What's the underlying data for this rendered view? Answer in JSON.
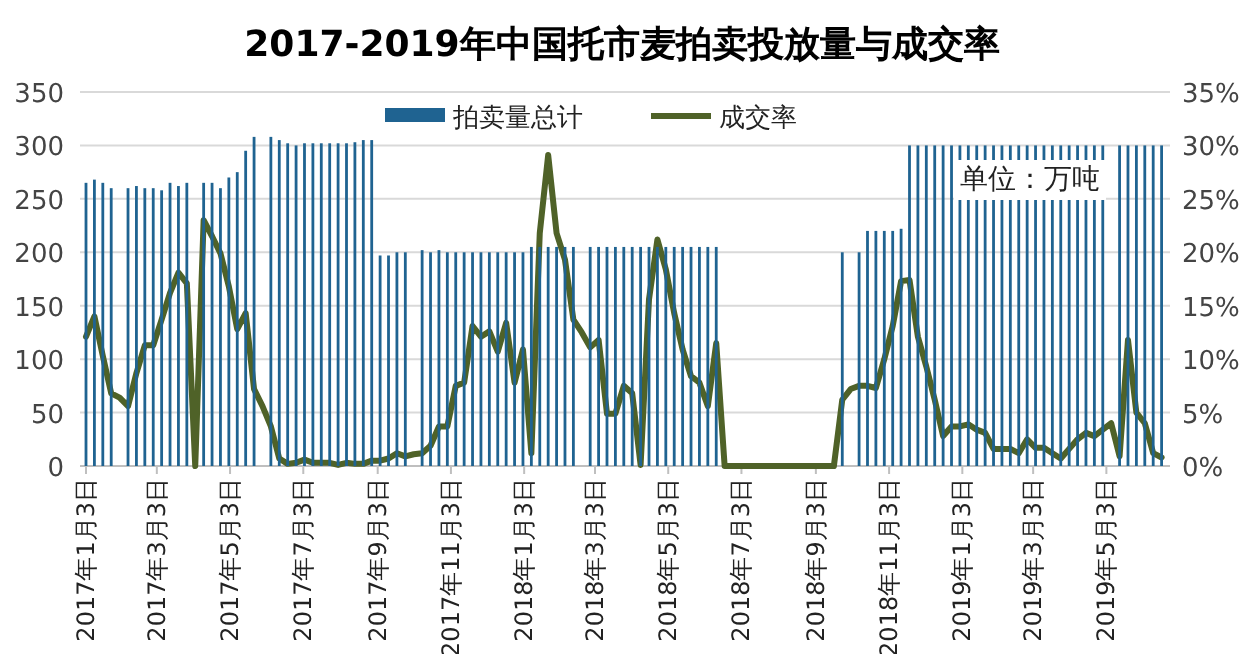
{
  "chart_data": {
    "type": "bar",
    "title": "2017-2019年中国托市麦拍卖投放量与成交率",
    "x": [
      "2017-01-03",
      "2017-01-10",
      "2017-01-17",
      "2017-01-24",
      "2017-01-31",
      "2017-02-07",
      "2017-02-14",
      "2017-02-21",
      "2017-02-28",
      "2017-03-07",
      "2017-03-14",
      "2017-03-21",
      "2017-03-28",
      "2017-04-04",
      "2017-04-11",
      "2017-04-18",
      "2017-04-25",
      "2017-05-02",
      "2017-05-09",
      "2017-05-16",
      "2017-05-23",
      "2017-05-30",
      "2017-06-06",
      "2017-06-13",
      "2017-06-20",
      "2017-06-27",
      "2017-07-04",
      "2017-07-11",
      "2017-07-18",
      "2017-07-25",
      "2017-08-01",
      "2017-08-08",
      "2017-08-15",
      "2017-08-22",
      "2017-08-29",
      "2017-09-05",
      "2017-09-12",
      "2017-09-19",
      "2017-09-26",
      "2017-10-03",
      "2017-10-10",
      "2017-10-17",
      "2017-10-24",
      "2017-10-31",
      "2017-11-07",
      "2017-11-14",
      "2017-11-21",
      "2017-11-28",
      "2017-12-05",
      "2017-12-12",
      "2017-12-19",
      "2017-12-26",
      "2018-01-02",
      "2018-01-09",
      "2018-01-16",
      "2018-01-23",
      "2018-01-30",
      "2018-02-06",
      "2018-02-13",
      "2018-02-20",
      "2018-02-27",
      "2018-03-06",
      "2018-03-13",
      "2018-03-20",
      "2018-03-27",
      "2018-04-03",
      "2018-04-10",
      "2018-04-17",
      "2018-04-24",
      "2018-05-01",
      "2018-05-08",
      "2018-05-15",
      "2018-05-22",
      "2018-05-29",
      "2018-06-05",
      "2018-06-12",
      "2018-06-19",
      "2018-06-26",
      "2018-07-03",
      "2018-07-10",
      "2018-07-17",
      "2018-07-24",
      "2018-07-31",
      "2018-08-07",
      "2018-08-14",
      "2018-08-21",
      "2018-08-28",
      "2018-09-04",
      "2018-09-11",
      "2018-09-18",
      "2018-09-25",
      "2018-10-02",
      "2018-10-09",
      "2018-10-16",
      "2018-10-23",
      "2018-10-30",
      "2018-11-06",
      "2018-11-13",
      "2018-11-20",
      "2018-11-27",
      "2018-12-04",
      "2018-12-11",
      "2018-12-18",
      "2018-12-25",
      "2019-01-01",
      "2019-01-08",
      "2019-01-15",
      "2019-01-22",
      "2019-01-29",
      "2019-02-05",
      "2019-02-12",
      "2019-02-19",
      "2019-02-26",
      "2019-03-05",
      "2019-03-12",
      "2019-03-19",
      "2019-03-26",
      "2019-04-02",
      "2019-04-09",
      "2019-04-16",
      "2019-04-23",
      "2019-04-30",
      "2019-05-07",
      "2019-05-14",
      "2019-05-21",
      "2019-05-28",
      "2019-06-04",
      "2019-06-11",
      "2019-06-18"
    ],
    "series": [
      {
        "name": "拍卖量总计",
        "color": "#1f6391",
        "values": [
          265,
          268,
          265,
          260,
          null,
          260,
          262,
          260,
          260,
          258,
          265,
          262,
          265,
          null,
          265,
          265,
          260,
          270,
          275,
          295,
          308,
          null,
          308,
          305,
          302,
          300,
          302,
          302,
          302,
          302,
          302,
          302,
          303,
          305,
          305,
          197,
          197,
          200,
          200,
          null,
          202,
          200,
          202,
          200,
          200,
          200,
          200,
          200,
          200,
          200,
          200,
          200,
          200,
          205,
          205,
          205,
          205,
          205,
          205,
          null,
          205,
          205,
          205,
          205,
          205,
          205,
          205,
          205,
          205,
          205,
          205,
          205,
          205,
          205,
          205,
          205,
          null,
          null,
          null,
          null,
          null,
          null,
          null,
          null,
          null,
          null,
          null,
          null,
          null,
          null,
          200,
          null,
          200,
          220,
          220,
          220,
          220,
          222,
          300,
          300,
          300,
          300,
          300,
          300,
          300,
          300,
          300,
          300,
          300,
          300,
          300,
          300,
          300,
          300,
          300,
          300,
          300,
          300,
          300,
          300,
          300,
          300,
          null,
          300,
          300,
          300,
          300,
          300,
          300
        ]
      },
      {
        "name": "成交率",
        "type": "line",
        "axis": "y2",
        "color": "#4f6228",
        "values": [
          12.1,
          14.0,
          10.3,
          6.8,
          6.4,
          5.6,
          8.7,
          11.3,
          11.3,
          13.7,
          16.2,
          18.1,
          17.1,
          0,
          23.0,
          21.5,
          19.9,
          16.8,
          12.8,
          14.3,
          7.2,
          5.6,
          3.7,
          0.7,
          0.2,
          0.3,
          0.6,
          0.3,
          0.3,
          0.3,
          0.1,
          0.3,
          0.2,
          0.2,
          0.5,
          0.5,
          0.7,
          1.2,
          0.9,
          1.1,
          1.2,
          1.9,
          3.7,
          3.7,
          7.5,
          7.8,
          13.1,
          12.1,
          12.6,
          10.7,
          13.4,
          7.8,
          10.9,
          1.2,
          21.8,
          29.1,
          21.8,
          19.3,
          13.7,
          12.5,
          11.1,
          11.8,
          4.9,
          4.9,
          7.5,
          6.8,
          0.1,
          15.6,
          21.2,
          18.4,
          14.3,
          10.9,
          8.4,
          7.8,
          5.6,
          11.5,
          0,
          0,
          0,
          0,
          0,
          0,
          0,
          0,
          0,
          0,
          0,
          0,
          0,
          0,
          6.2,
          7.2,
          7.5,
          7.5,
          7.3,
          10.0,
          13.1,
          17.3,
          17.4,
          12.1,
          9.3,
          6.2,
          2.8,
          3.7,
          3.7,
          3.9,
          3.4,
          3.1,
          1.6,
          1.6,
          1.6,
          1.2,
          2.5,
          1.7,
          1.7,
          1.2,
          0.7,
          1.6,
          2.5,
          3.1,
          2.8,
          3.4,
          4.0,
          0.9,
          11.8,
          5.0,
          4.0,
          1.2,
          0.8
        ]
      }
    ],
    "xlim": [
      "2016-12-29",
      "2019-06-25"
    ],
    "xticks": [
      {
        "value": "2017-01-03",
        "label": "2017年1月3日"
      },
      {
        "value": "2017-03-03",
        "label": "2017年3月3日"
      },
      {
        "value": "2017-05-03",
        "label": "2017年5月3日"
      },
      {
        "value": "2017-07-03",
        "label": "2017年7月3日"
      },
      {
        "value": "2017-09-03",
        "label": "2017年9月3日"
      },
      {
        "value": "2017-11-03",
        "label": "2017年11月3日"
      },
      {
        "value": "2018-01-03",
        "label": "2018年1月3日"
      },
      {
        "value": "2018-03-03",
        "label": "2018年3月3日"
      },
      {
        "value": "2018-05-03",
        "label": "2018年5月3日"
      },
      {
        "value": "2018-07-03",
        "label": "2018年7月3日"
      },
      {
        "value": "2018-09-03",
        "label": "2018年9月3日"
      },
      {
        "value": "2018-11-03",
        "label": "2018年11月3日"
      },
      {
        "value": "2019-01-03",
        "label": "2019年1月3日"
      },
      {
        "value": "2019-03-03",
        "label": "2019年3月3日"
      },
      {
        "value": "2019-05-03",
        "label": "2019年5月3日"
      }
    ],
    "ylim": [
      0,
      350
    ],
    "yticks": [
      0,
      50,
      100,
      150,
      200,
      250,
      300,
      350
    ],
    "y2lim": [
      0,
      35
    ],
    "y2ticks": [
      {
        "value": 0,
        "label": "0%"
      },
      {
        "value": 5,
        "label": "5%"
      },
      {
        "value": 10,
        "label": "10%"
      },
      {
        "value": 15,
        "label": "15%"
      },
      {
        "value": 20,
        "label": "20%"
      },
      {
        "value": 25,
        "label": "25%"
      },
      {
        "value": 30,
        "label": "30%"
      },
      {
        "value": 35,
        "label": "35%"
      }
    ],
    "grid": "y",
    "legend": "top",
    "marker": "none",
    "line_style": "solid",
    "annotations": [
      "单位：万吨"
    ]
  }
}
